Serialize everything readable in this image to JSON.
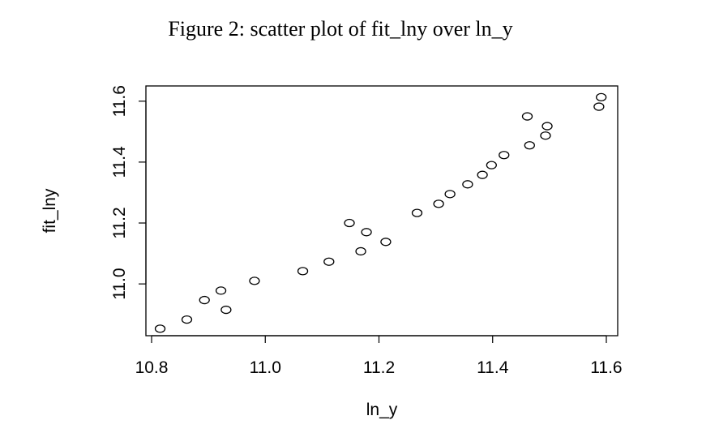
{
  "figure": {
    "caption": "Figure 2: scatter plot of fit_lny over ln_y"
  },
  "chart_data": {
    "type": "scatter",
    "title": "",
    "xlabel": "ln_y",
    "ylabel": "fit_lny",
    "xlim": [
      10.79,
      11.62
    ],
    "ylim": [
      10.83,
      11.65
    ],
    "xticks": [
      10.8,
      11.0,
      11.2,
      11.4,
      11.6
    ],
    "xtick_labels": [
      "10.8",
      "11.0",
      "11.2",
      "11.4",
      "11.6"
    ],
    "yticks": [
      11.0,
      11.2,
      11.4,
      11.6
    ],
    "ytick_labels": [
      "11.0",
      "11.2",
      "11.4",
      "11.6"
    ],
    "grid": false,
    "marker": "open-circle",
    "color": "#000000",
    "points": [
      {
        "x": 10.815,
        "y": 10.853
      },
      {
        "x": 10.862,
        "y": 10.883
      },
      {
        "x": 10.893,
        "y": 10.947
      },
      {
        "x": 10.922,
        "y": 10.978
      },
      {
        "x": 10.931,
        "y": 10.915
      },
      {
        "x": 10.981,
        "y": 11.01
      },
      {
        "x": 11.066,
        "y": 11.042
      },
      {
        "x": 11.112,
        "y": 11.073
      },
      {
        "x": 11.148,
        "y": 11.2
      },
      {
        "x": 11.168,
        "y": 11.107
      },
      {
        "x": 11.178,
        "y": 11.17
      },
      {
        "x": 11.212,
        "y": 11.138
      },
      {
        "x": 11.267,
        "y": 11.233
      },
      {
        "x": 11.305,
        "y": 11.263
      },
      {
        "x": 11.325,
        "y": 11.295
      },
      {
        "x": 11.356,
        "y": 11.327
      },
      {
        "x": 11.382,
        "y": 11.358
      },
      {
        "x": 11.398,
        "y": 11.39
      },
      {
        "x": 11.42,
        "y": 11.423
      },
      {
        "x": 11.461,
        "y": 11.55
      },
      {
        "x": 11.465,
        "y": 11.455
      },
      {
        "x": 11.493,
        "y": 11.487
      },
      {
        "x": 11.496,
        "y": 11.518
      },
      {
        "x": 11.587,
        "y": 11.582
      },
      {
        "x": 11.591,
        "y": 11.613
      }
    ]
  }
}
